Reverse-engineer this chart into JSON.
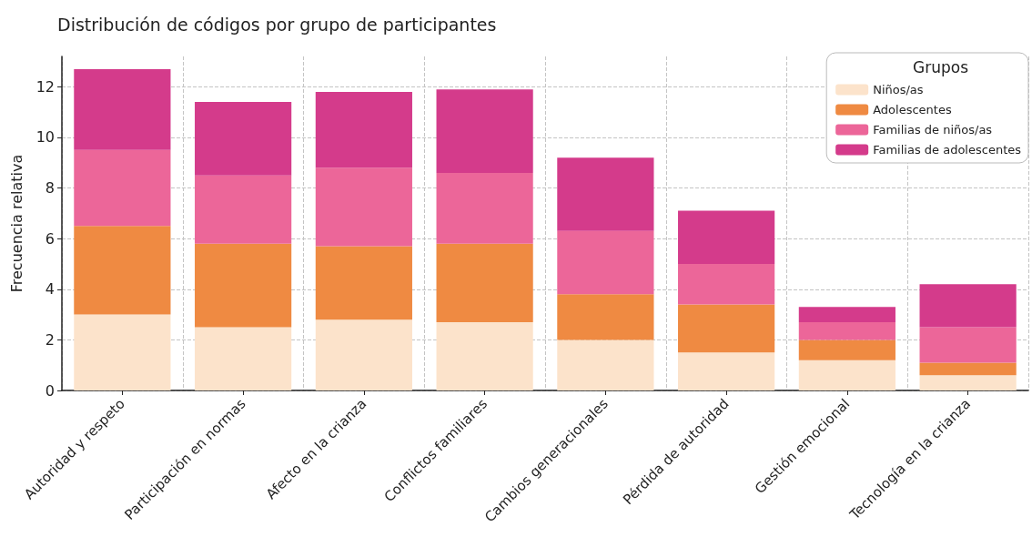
{
  "chart_data": {
    "type": "bar",
    "title": "Distribución de códigos por grupo de participantes",
    "ylabel": "Frecuencia relativa",
    "legend_title": "Grupos",
    "categories": [
      "Autoridad y respeto",
      "Participación en normas",
      "Afecto en la crianza",
      "Conflictos familiares",
      "Cambios generacionales",
      "Pérdida de autoridad",
      "Gestión emocional",
      "Tecnología en la crianza"
    ],
    "series": [
      {
        "name": "Niños/as",
        "color": "#fce3cb",
        "values": [
          3.0,
          2.5,
          2.8,
          2.7,
          2.0,
          1.5,
          1.2,
          0.6
        ]
      },
      {
        "name": "Adolescentes",
        "color": "#ef8a42",
        "values": [
          3.5,
          3.3,
          2.9,
          3.1,
          1.8,
          1.9,
          0.8,
          0.5
        ]
      },
      {
        "name": "Familias de niños/as",
        "color": "#ec6699",
        "values": [
          3.0,
          2.7,
          3.1,
          2.8,
          2.5,
          1.6,
          0.7,
          1.4
        ]
      },
      {
        "name": "Familias de adolescentes",
        "color": "#d43b8b",
        "values": [
          3.2,
          2.9,
          3.0,
          3.3,
          2.9,
          2.1,
          0.6,
          1.7
        ]
      }
    ],
    "stacked": true,
    "ylim": [
      0,
      13.2
    ],
    "yticks": [
      0,
      2,
      4,
      6,
      8,
      10,
      12
    ],
    "grid": true,
    "legend": "top right"
  }
}
